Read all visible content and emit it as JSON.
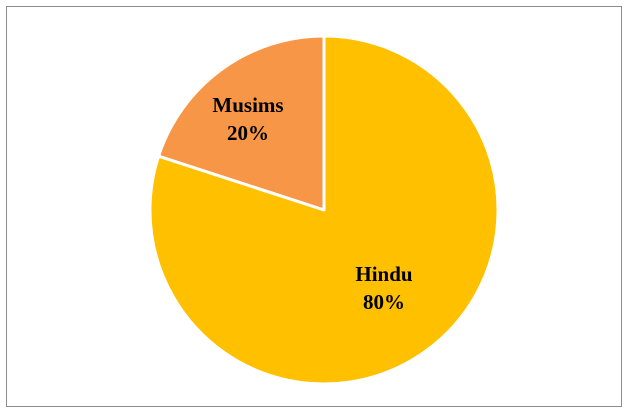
{
  "chart_data": {
    "type": "pie",
    "title": "",
    "slices": [
      {
        "label": "Musims",
        "percent_label": "20%",
        "value": 20,
        "color": "#F79646"
      },
      {
        "label": "Hindu",
        "percent_label": "80%",
        "value": 80,
        "color": "#FFC000"
      }
    ],
    "start_angle_deg": 0,
    "direction": "counterclockwise",
    "slice_border_color": "#FFFFFF",
    "legend": "none"
  }
}
